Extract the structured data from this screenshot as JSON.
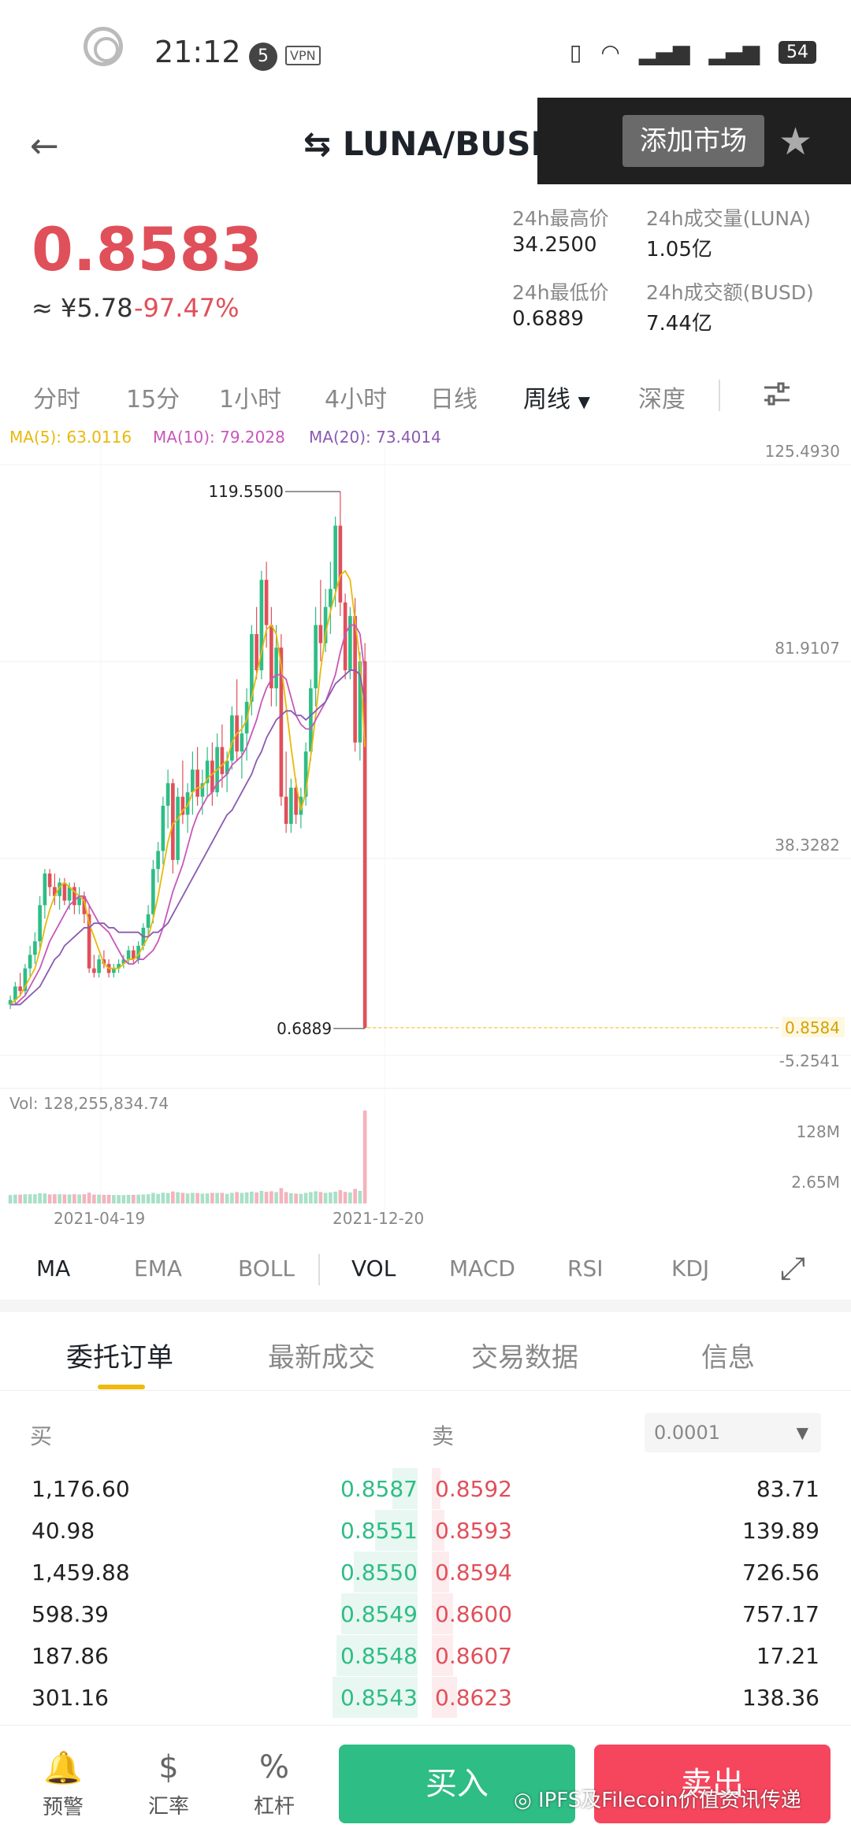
{
  "status_bar": {
    "time": "21:12",
    "notif_count": "5",
    "vpn": "VPN",
    "battery": "54"
  },
  "header": {
    "pair": "LUNA/BUSD",
    "add_market": "添加市场"
  },
  "price": {
    "last": "0.8583",
    "cny": "≈ ¥5.78",
    "change": "-97.47%"
  },
  "stats": {
    "high_label": "24h最高价",
    "high_value": "34.2500",
    "vol_label": "24h成交量(LUNA)",
    "vol_value": "1.05亿",
    "low_label": "24h最低价",
    "low_value": "0.6889",
    "amount_label": "24h成交额(BUSD)",
    "amount_value": "7.44亿"
  },
  "timeframes": [
    "分时",
    "15分",
    "1小时",
    "4小时",
    "日线",
    "周线",
    "深度"
  ],
  "active_timeframe": "周线",
  "chart_labels": {
    "ma5": "MA(5): 63.0116",
    "ma10": "MA(10): 79.2028",
    "ma20": "MA(20): 73.4014",
    "y_ticks": [
      "125.4930",
      "81.9107",
      "38.3282",
      "-5.2541"
    ],
    "high_marker": "119.5500",
    "low_marker": "0.6889",
    "last_price": "0.8584",
    "vol_label": "Vol: 128,255,834.74",
    "vol_ticks": [
      "128M",
      "2.65M"
    ],
    "dates": [
      "2021-04-19",
      "2021-12-20"
    ]
  },
  "chart_data": {
    "type": "candlestick",
    "ylim": [
      -5.2541,
      125.493
    ],
    "candles": [
      {
        "o": 6,
        "h": 8,
        "l": 5,
        "c": 7
      },
      {
        "o": 7,
        "h": 11,
        "l": 6,
        "c": 10
      },
      {
        "o": 10,
        "h": 13,
        "l": 8,
        "c": 9
      },
      {
        "o": 9,
        "h": 15,
        "l": 8,
        "c": 14
      },
      {
        "o": 14,
        "h": 19,
        "l": 12,
        "c": 17
      },
      {
        "o": 17,
        "h": 22,
        "l": 15,
        "c": 20
      },
      {
        "o": 20,
        "h": 30,
        "l": 18,
        "c": 28
      },
      {
        "o": 28,
        "h": 36,
        "l": 25,
        "c": 35
      },
      {
        "o": 35,
        "h": 36,
        "l": 30,
        "c": 32
      },
      {
        "o": 32,
        "h": 35,
        "l": 28,
        "c": 30
      },
      {
        "o": 30,
        "h": 34,
        "l": 27,
        "c": 33
      },
      {
        "o": 33,
        "h": 34,
        "l": 28,
        "c": 29
      },
      {
        "o": 29,
        "h": 33,
        "l": 27,
        "c": 32
      },
      {
        "o": 32,
        "h": 33,
        "l": 26,
        "c": 28
      },
      {
        "o": 28,
        "h": 32,
        "l": 26,
        "c": 30
      },
      {
        "o": 30,
        "h": 31,
        "l": 24,
        "c": 26
      },
      {
        "o": 26,
        "h": 28,
        "l": 13,
        "c": 14
      },
      {
        "o": 14,
        "h": 17,
        "l": 12,
        "c": 13
      },
      {
        "o": 13,
        "h": 17,
        "l": 12,
        "c": 16
      },
      {
        "o": 16,
        "h": 18,
        "l": 14,
        "c": 15
      },
      {
        "o": 15,
        "h": 16,
        "l": 12,
        "c": 13
      },
      {
        "o": 13,
        "h": 15,
        "l": 12,
        "c": 14
      },
      {
        "o": 14,
        "h": 16,
        "l": 13,
        "c": 15
      },
      {
        "o": 15,
        "h": 17,
        "l": 14,
        "c": 16
      },
      {
        "o": 16,
        "h": 19,
        "l": 15,
        "c": 18
      },
      {
        "o": 18,
        "h": 19,
        "l": 15,
        "c": 16
      },
      {
        "o": 16,
        "h": 20,
        "l": 15,
        "c": 19
      },
      {
        "o": 19,
        "h": 24,
        "l": 18,
        "c": 23
      },
      {
        "o": 23,
        "h": 28,
        "l": 21,
        "c": 26
      },
      {
        "o": 26,
        "h": 38,
        "l": 24,
        "c": 36
      },
      {
        "o": 36,
        "h": 42,
        "l": 33,
        "c": 40
      },
      {
        "o": 40,
        "h": 52,
        "l": 37,
        "c": 50
      },
      {
        "o": 50,
        "h": 58,
        "l": 45,
        "c": 55
      },
      {
        "o": 55,
        "h": 56,
        "l": 35,
        "c": 38
      },
      {
        "o": 38,
        "h": 54,
        "l": 37,
        "c": 52
      },
      {
        "o": 52,
        "h": 60,
        "l": 46,
        "c": 48
      },
      {
        "o": 48,
        "h": 55,
        "l": 44,
        "c": 53
      },
      {
        "o": 53,
        "h": 62,
        "l": 48,
        "c": 58
      },
      {
        "o": 58,
        "h": 63,
        "l": 50,
        "c": 52
      },
      {
        "o": 52,
        "h": 58,
        "l": 48,
        "c": 55
      },
      {
        "o": 55,
        "h": 63,
        "l": 52,
        "c": 60
      },
      {
        "o": 60,
        "h": 64,
        "l": 50,
        "c": 53
      },
      {
        "o": 53,
        "h": 66,
        "l": 52,
        "c": 63
      },
      {
        "o": 63,
        "h": 68,
        "l": 54,
        "c": 57
      },
      {
        "o": 57,
        "h": 62,
        "l": 53,
        "c": 60
      },
      {
        "o": 60,
        "h": 72,
        "l": 58,
        "c": 70
      },
      {
        "o": 70,
        "h": 78,
        "l": 60,
        "c": 62
      },
      {
        "o": 62,
        "h": 70,
        "l": 56,
        "c": 66
      },
      {
        "o": 66,
        "h": 76,
        "l": 60,
        "c": 73
      },
      {
        "o": 73,
        "h": 90,
        "l": 70,
        "c": 88
      },
      {
        "o": 88,
        "h": 94,
        "l": 78,
        "c": 80
      },
      {
        "o": 80,
        "h": 102,
        "l": 78,
        "c": 100
      },
      {
        "o": 100,
        "h": 104,
        "l": 85,
        "c": 90
      },
      {
        "o": 90,
        "h": 94,
        "l": 72,
        "c": 76
      },
      {
        "o": 76,
        "h": 90,
        "l": 72,
        "c": 85
      },
      {
        "o": 85,
        "h": 88,
        "l": 50,
        "c": 52
      },
      {
        "o": 52,
        "h": 62,
        "l": 44,
        "c": 46
      },
      {
        "o": 46,
        "h": 56,
        "l": 44,
        "c": 54
      },
      {
        "o": 54,
        "h": 56,
        "l": 46,
        "c": 48
      },
      {
        "o": 48,
        "h": 54,
        "l": 45,
        "c": 52
      },
      {
        "o": 52,
        "h": 64,
        "l": 50,
        "c": 62
      },
      {
        "o": 62,
        "h": 78,
        "l": 60,
        "c": 76
      },
      {
        "o": 76,
        "h": 94,
        "l": 72,
        "c": 90
      },
      {
        "o": 90,
        "h": 100,
        "l": 82,
        "c": 86
      },
      {
        "o": 86,
        "h": 98,
        "l": 84,
        "c": 94
      },
      {
        "o": 94,
        "h": 104,
        "l": 88,
        "c": 98
      },
      {
        "o": 98,
        "h": 114,
        "l": 94,
        "c": 112
      },
      {
        "o": 112,
        "h": 119.55,
        "l": 92,
        "c": 95
      },
      {
        "o": 95,
        "h": 97,
        "l": 78,
        "c": 80
      },
      {
        "o": 80,
        "h": 94,
        "l": 78,
        "c": 92
      },
      {
        "o": 92,
        "h": 96,
        "l": 62,
        "c": 64
      },
      {
        "o": 64,
        "h": 84,
        "l": 60,
        "c": 82
      },
      {
        "o": 82,
        "h": 86,
        "l": 0.6889,
        "c": 0.8584
      }
    ],
    "ma5": [
      6,
      7,
      8,
      10,
      12,
      14,
      18,
      23,
      27,
      30,
      32,
      33,
      32,
      31,
      30,
      29,
      24,
      21,
      18,
      15,
      14,
      14,
      14,
      15,
      16,
      16,
      17,
      19,
      21,
      25,
      30,
      36,
      42,
      46,
      47,
      49,
      50,
      53,
      54,
      54,
      56,
      57,
      58,
      59,
      60,
      64,
      66,
      67,
      69,
      74,
      79,
      84,
      89,
      90,
      88,
      81,
      72,
      63,
      55,
      49,
      53,
      61,
      70,
      80,
      88,
      93,
      97,
      101,
      102,
      100,
      91,
      82,
      63
    ],
    "ma10": [
      6,
      6,
      7,
      8,
      10,
      12,
      14,
      17,
      20,
      22,
      24,
      26,
      28,
      29,
      30,
      30,
      28,
      26,
      24,
      23,
      22,
      20,
      18,
      16,
      15,
      15,
      16,
      16,
      17,
      18,
      20,
      23,
      27,
      31,
      34,
      37,
      41,
      45,
      48,
      50,
      52,
      53,
      55,
      56,
      57,
      59,
      60,
      61,
      63,
      66,
      69,
      73,
      76,
      78,
      79,
      79,
      78,
      74,
      70,
      68,
      67,
      67,
      69,
      71,
      73,
      76,
      79,
      84,
      88,
      90,
      90,
      88,
      79
    ],
    "ma20": [
      6,
      6,
      6,
      7,
      8,
      9,
      10,
      12,
      14,
      16,
      17,
      19,
      20,
      21,
      22,
      23,
      23,
      24,
      24,
      24,
      23,
      23,
      22,
      22,
      22,
      22,
      22,
      21,
      21,
      22,
      22,
      23,
      24,
      26,
      28,
      30,
      32,
      34,
      36,
      38,
      40,
      42,
      44,
      46,
      48,
      49,
      51,
      53,
      55,
      57,
      60,
      62,
      65,
      67,
      69,
      70,
      71,
      71,
      70,
      70,
      69,
      70,
      71,
      72,
      73,
      75,
      77,
      78,
      79,
      80,
      80,
      79,
      73
    ]
  },
  "indicators": [
    "MA",
    "EMA",
    "BOLL",
    "VOL",
    "MACD",
    "RSI",
    "KDJ"
  ],
  "order_tabs": [
    "委托订单",
    "最新成交",
    "交易数据",
    "信息"
  ],
  "orderbook": {
    "buy_label": "买",
    "sell_label": "卖",
    "precision": "0.0001",
    "rows": [
      {
        "bq": "1,176.60",
        "bp": "0.8587",
        "sp": "0.8592",
        "sq": "83.71",
        "bd": 0.06,
        "sd": 0.02
      },
      {
        "bq": "40.98",
        "bp": "0.8551",
        "sp": "0.8593",
        "sq": "139.89",
        "bd": 0.1,
        "sd": 0.03
      },
      {
        "bq": "1,459.88",
        "bp": "0.8550",
        "sp": "0.8594",
        "sq": "726.56",
        "bd": 0.15,
        "sd": 0.04
      },
      {
        "bq": "598.39",
        "bp": "0.8549",
        "sp": "0.8600",
        "sq": "757.17",
        "bd": 0.18,
        "sd": 0.05
      },
      {
        "bq": "187.86",
        "bp": "0.8548",
        "sp": "0.8607",
        "sq": "17.21",
        "bd": 0.19,
        "sd": 0.05
      },
      {
        "bq": "301.16",
        "bp": "0.8543",
        "sp": "0.8623",
        "sq": "138.36",
        "bd": 0.2,
        "sd": 0.06
      }
    ]
  },
  "bottom_bar": {
    "alert": "预警",
    "rate": "汇率",
    "leverage": "杠杆",
    "buy": "买入",
    "sell": "卖出"
  },
  "watermark": "IPFS及Filecoin价值资讯传递",
  "colors": {
    "up": "#2ebd85",
    "down": "#e0505a",
    "ma5": "#e8b90b",
    "ma10": "#c857b9",
    "ma20": "#8a5ab0",
    "accent": "#f0b90b"
  }
}
